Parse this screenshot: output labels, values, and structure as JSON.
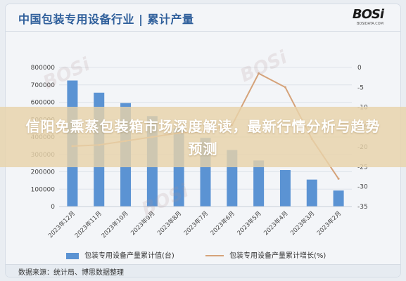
{
  "header": {
    "title": "中国包装专用设备行业 | 累计产量",
    "logo_text": "BOSi",
    "logo_sub": "BOSIDATA.COM"
  },
  "banner": {
    "text": "信阳免熏蒸包装箱市场深度解读，最新行情分析与趋势预测"
  },
  "watermark": "BOSi",
  "legend": {
    "bar_label": "包装专用设备产量累计值(台)",
    "line_label": "包装专用设备产量累计增长(%)"
  },
  "footer": {
    "source": "数据来源：统计局、博思数据整理"
  },
  "colors": {
    "bar": "#5b93d3",
    "line": "#d5a37a",
    "title": "#2f5f9b",
    "banner": "#e8d3aa"
  },
  "chart_data": {
    "type": "bar",
    "categories": [
      "2023年12月",
      "2023年11月",
      "2023年10月",
      "2023年9月",
      "2023年8月",
      "2023年7月",
      "2023年6月",
      "2023年5月",
      "2023年4月",
      "2023年3月",
      "2023年2月"
    ],
    "series": [
      {
        "name": "包装专用设备产量累计值(台)",
        "type": "bar",
        "axis": "left",
        "values": [
          725000,
          655000,
          595000,
          520000,
          450000,
          395000,
          325000,
          265000,
          210000,
          155000,
          92000
        ]
      },
      {
        "name": "包装专用设备产量累计增长(%)",
        "type": "line",
        "axis": "right",
        "values": [
          -19.8,
          -19.5,
          -18.5,
          -17.5,
          -16.5,
          -16,
          -14.5,
          -1.5,
          -5,
          -18,
          -28
        ]
      }
    ],
    "ylim_left": [
      0,
      800000
    ],
    "ylim_right": [
      -35,
      0
    ],
    "yticks_left": [
      "800000",
      "700000",
      "600000",
      "500000",
      "400000",
      "300000",
      "200000",
      "100000",
      "0"
    ],
    "yticks_right": [
      "0",
      "-5",
      "-10",
      "-15",
      "-20",
      "-25",
      "-30",
      "-35"
    ],
    "grid": true,
    "legend_position": "bottom"
  }
}
